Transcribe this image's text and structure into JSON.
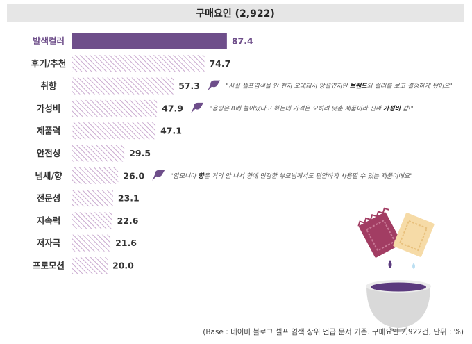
{
  "title": "구매요인 (2,922)",
  "chart_data": {
    "type": "bar",
    "orientation": "horizontal",
    "categories": [
      "발색컬러",
      "후기/추천",
      "취향",
      "가성비",
      "제품력",
      "안전성",
      "냄새/향",
      "전문성",
      "지속력",
      "저자극",
      "프로모션"
    ],
    "values": [
      87.4,
      74.7,
      57.3,
      47.9,
      47.1,
      29.5,
      26.0,
      23.1,
      22.6,
      21.6,
      20.0
    ],
    "value_labels": [
      "87.4",
      "74.7",
      "57.3",
      "47.9",
      "47.1",
      "29.5",
      "26.0",
      "23.1",
      "22.6",
      "21.6",
      "20.0"
    ],
    "highlighted_category": "발색컬러",
    "xlim": [
      0,
      100
    ],
    "colors": {
      "highlight": "#6e4e8a",
      "hatch": "#c9a9cf",
      "icon": "#6e4e8a",
      "title_bg": "#e6e6e6"
    }
  },
  "quotes": [
    {
      "row": 2,
      "parts": [
        {
          "text": "\"사실 셀프염색을 안 한지 오래돼서 망설였지만 ",
          "bold": false
        },
        {
          "text": "브랜드",
          "bold": true
        },
        {
          "text": "와 컬러를 보고 결정하게 됐어요\"",
          "bold": false
        }
      ]
    },
    {
      "row": 3,
      "parts": [
        {
          "text": "\"용량은 8배 늘어났다고 하는데 가격은 오히려 낮춘 제품이라 진짜 ",
          "bold": false
        },
        {
          "text": "가성비",
          "bold": true
        },
        {
          "text": " 갑!\"",
          "bold": false
        }
      ]
    },
    {
      "row": 6,
      "parts": [
        {
          "text": "\"암모니아 ",
          "bold": false
        },
        {
          "text": "향",
          "bold": true
        },
        {
          "text": "은 거의 안 나서 향에 민감한 부모님께서도 편안하게 사용할 수 있는 제품이에요\"",
          "bold": false
        }
      ]
    }
  ],
  "footnote": "(Base : 네이버 블로그 셀프 염색 상위 언급 문서 기준. 구매요인 2,922건, 단위 : %)",
  "icons": {
    "quote_marker": "speech-bubble-icon",
    "illustration": "hair-dye-bowl-illustration"
  }
}
